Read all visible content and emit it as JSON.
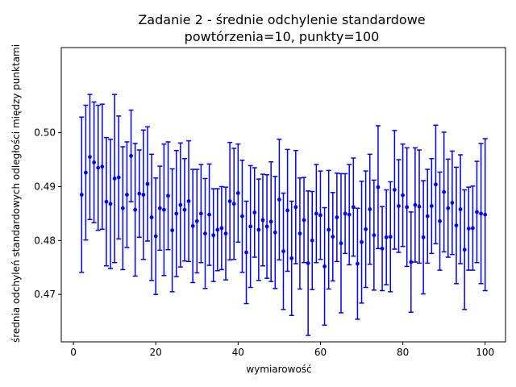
{
  "chart_data": {
    "type": "scatter",
    "title": "Zadanie 2 - średnie odchylenie standardowe",
    "subtitle": "powtórzenia=10, punkty=100",
    "xlabel": "wymiarowość",
    "ylabel": "średnia odchyleń standardowych odległości między punktami",
    "xlim": [
      -2.95,
      104.95
    ],
    "ylim": [
      0.4612,
      0.5158
    ],
    "xticks": [
      "0",
      "20",
      "40",
      "60",
      "80",
      "100"
    ],
    "yticks": [
      "0.47",
      "0.48",
      "0.49",
      "0.50"
    ],
    "grid": false,
    "legend": "none",
    "color": "#0000ff",
    "x": [
      2,
      3,
      4,
      5,
      6,
      7,
      8,
      9,
      10,
      11,
      12,
      13,
      14,
      15,
      16,
      17,
      18,
      19,
      20,
      21,
      22,
      23,
      24,
      25,
      26,
      27,
      28,
      29,
      30,
      31,
      32,
      33,
      34,
      35,
      36,
      37,
      38,
      39,
      40,
      41,
      42,
      43,
      44,
      45,
      46,
      47,
      48,
      49,
      50,
      51,
      52,
      53,
      54,
      55,
      56,
      57,
      58,
      59,
      60,
      61,
      62,
      63,
      64,
      65,
      66,
      67,
      68,
      69,
      70,
      71,
      72,
      73,
      74,
      75,
      76,
      77,
      78,
      79,
      80,
      81,
      82,
      83,
      84,
      85,
      86,
      87,
      88,
      89,
      90,
      91,
      92,
      93,
      94,
      95,
      96,
      97,
      98,
      99,
      100
    ],
    "y": [
      0.4885,
      0.4926,
      0.4955,
      0.4945,
      0.4935,
      0.4937,
      0.4872,
      0.4868,
      0.4915,
      0.4917,
      0.486,
      0.4885,
      0.4957,
      0.4857,
      0.4887,
      0.4885,
      0.4905,
      0.4843,
      0.4808,
      0.486,
      0.4857,
      0.4883,
      0.4819,
      0.485,
      0.4866,
      0.4857,
      0.4873,
      0.4827,
      0.4836,
      0.485,
      0.4813,
      0.4848,
      0.481,
      0.482,
      0.4823,
      0.4813,
      0.4873,
      0.4868,
      0.4888,
      0.4845,
      0.4778,
      0.4826,
      0.4852,
      0.482,
      0.4838,
      0.4826,
      0.4835,
      0.4815,
      0.4876,
      0.478,
      0.4856,
      0.4767,
      0.4862,
      0.4813,
      0.4838,
      0.4758,
      0.48,
      0.485,
      0.4847,
      0.4752,
      0.482,
      0.4807,
      0.4843,
      0.4795,
      0.485,
      0.4848,
      0.4862,
      0.4757,
      0.4797,
      0.4821,
      0.4858,
      0.481,
      0.4899,
      0.4785,
      0.4806,
      0.4807,
      0.4894,
      0.4864,
      0.4884,
      0.4862,
      0.476,
      0.4866,
      0.4863,
      0.4806,
      0.4845,
      0.4864,
      0.4904,
      0.4836,
      0.489,
      0.486,
      0.487,
      0.4828,
      0.4858,
      0.4783,
      0.4822,
      0.4823,
      0.4853,
      0.485,
      0.4848
    ],
    "yerr": [
      0.0144,
      0.0125,
      0.0116,
      0.0112,
      0.0116,
      0.0116,
      0.0119,
      0.012,
      0.0156,
      0.0114,
      0.0114,
      0.0098,
      0.0085,
      0.0123,
      0.0081,
      0.012,
      0.0106,
      0.0117,
      0.0108,
      0.0078,
      0.0122,
      0.01,
      0.0114,
      0.0117,
      0.0115,
      0.0095,
      0.0112,
      0.0105,
      0.0096,
      0.0091,
      0.0102,
      0.0094,
      0.0086,
      0.0076,
      0.0077,
      0.0086,
      0.0109,
      0.0103,
      0.0091,
      0.0104,
      0.0095,
      0.0113,
      0.0083,
      0.0094,
      0.0085,
      0.0096,
      0.0111,
      0.0104,
      0.0112,
      0.0108,
      0.0113,
      0.0106,
      0.0105,
      0.0103,
      0.0079,
      0.0134,
      0.0091,
      0.0091,
      0.0082,
      0.0109,
      0.011,
      0.0082,
      0.0082,
      0.0129,
      0.0074,
      0.0093,
      0.0091,
      0.0103,
      0.0113,
      0.0108,
      0.0102,
      0.0102,
      0.0114,
      0.0078,
      0.0088,
      0.0102,
      0.011,
      0.0086,
      0.0095,
      0.011,
      0.0093,
      0.0106,
      0.0105,
      0.0105,
      0.0087,
      0.0088,
      0.011,
      0.0091,
      0.0111,
      0.0091,
      0.0096,
      0.0108,
      0.0101,
      0.0111,
      0.0077,
      0.0078,
      0.0094,
      0.013,
      0.0141
    ]
  }
}
